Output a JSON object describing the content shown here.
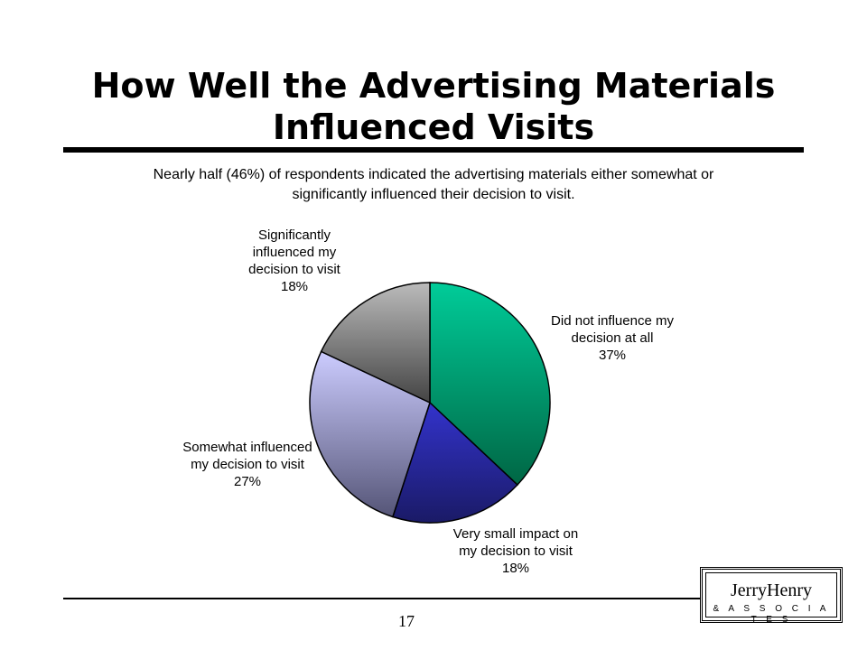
{
  "slide": {
    "title_lines": [
      "How Well the Advertising Materials",
      "Influenced Visits"
    ],
    "subtitle_lines": [
      "Nearly half (46%) of respondents indicated the advertising materials either somewhat or",
      "significantly influenced their decision to visit."
    ],
    "page_number": "17",
    "logo": {
      "name": "JerryHenry",
      "sub": "& A S S O C I A T E S"
    }
  },
  "chart_data": {
    "type": "pie",
    "title": "How Well the Advertising Materials Influenced Visits",
    "slices": [
      {
        "label_lines": [
          "Did not influence my",
          "decision at all",
          "37%"
        ],
        "value": 37,
        "color_light": "#00cc99",
        "color_dark": "#006644"
      },
      {
        "label_lines": [
          "Very small impact on",
          "my decision to visit",
          "18%"
        ],
        "value": 18,
        "color_light": "#3333cc",
        "color_dark": "#1a1a66"
      },
      {
        "label_lines": [
          "Somewhat influenced",
          "my decision to visit",
          "27%"
        ],
        "value": 27,
        "color_light": "#ccccff",
        "color_dark": "#555577"
      },
      {
        "label_lines": [
          "Significantly",
          "influenced my",
          "decision to visit",
          "18%"
        ],
        "value": 18,
        "color_light": "#bbbbbb",
        "color_dark": "#444444"
      }
    ]
  }
}
